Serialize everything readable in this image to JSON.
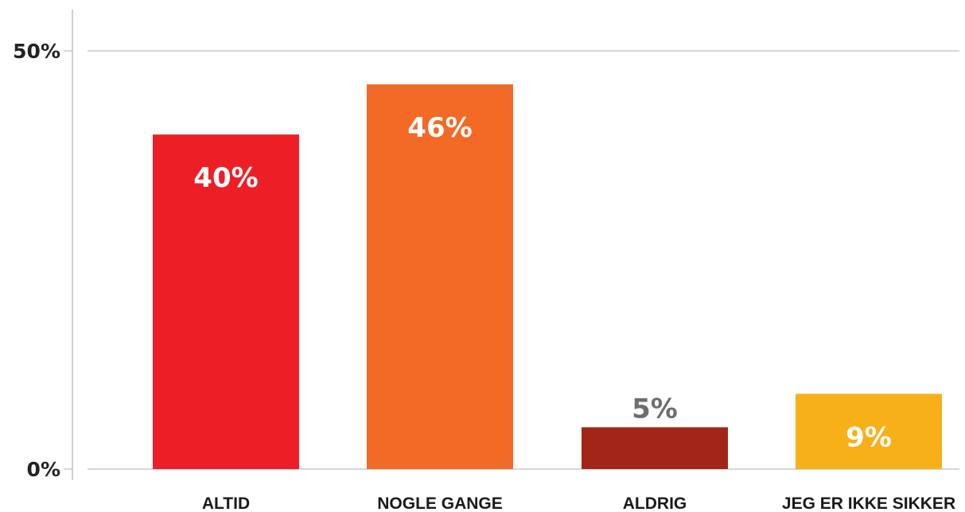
{
  "chart_data": {
    "type": "bar",
    "title": "",
    "xlabel": "",
    "ylabel": "",
    "ylim": [
      0,
      50
    ],
    "yticks": [
      {
        "value": 0,
        "label": "0%"
      },
      {
        "value": 50,
        "label": "50%"
      }
    ],
    "grid": true,
    "categories": [
      "ALTID",
      "NOGLE GANGE",
      "ALDRIG",
      "JEG ER IKKE SIKKER"
    ],
    "values": [
      40,
      46,
      5,
      9
    ],
    "data_labels": [
      "40%",
      "46%",
      "5%",
      "9%"
    ],
    "colors": [
      "#ed1f26",
      "#f26a25",
      "#a32518",
      "#f8b019"
    ],
    "label_colors": [
      "#ffffff",
      "#ffffff",
      "#6d6e70",
      "#ffffff"
    ],
    "label_position": [
      "inside",
      "inside",
      "above",
      "inside"
    ]
  }
}
